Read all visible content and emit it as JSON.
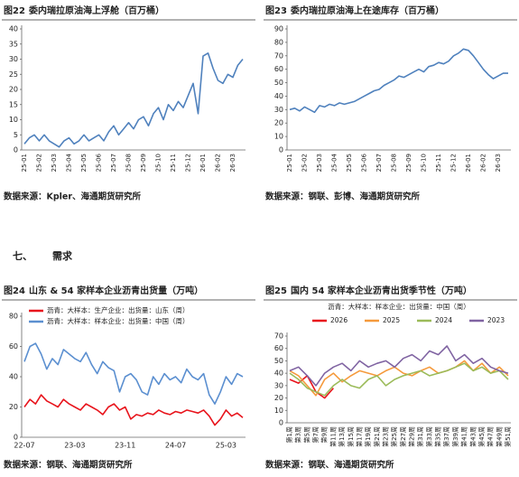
{
  "figures": [
    {
      "label": "图22",
      "title": "委内瑞拉原油海上浮舱（百万桶）",
      "source": "数据来源：Kpler、海通期货研究所",
      "chart_data": {
        "type": "line",
        "categories": [
          "25-01",
          null,
          null,
          "25-02",
          null,
          null,
          "25-03",
          null,
          null,
          "25-04",
          null,
          null,
          "25-05",
          null,
          null,
          "25-06",
          null,
          null,
          "25-07",
          null,
          null,
          "25-08",
          null,
          null,
          "25-09",
          null,
          null,
          "25-10",
          null,
          null,
          "25-11",
          null,
          null,
          "25-12",
          null,
          null,
          "26-01",
          null,
          null,
          "26-02",
          null,
          null,
          "26-03",
          null,
          null
        ],
        "series": [
          {
            "color": "#4f81bd",
            "values": [
              2,
              4,
              5,
              3,
              5,
              3,
              2,
              1,
              3,
              4,
              2,
              3,
              5,
              3,
              4,
              5,
              3,
              6,
              8,
              5,
              7,
              9,
              7,
              10,
              11,
              8,
              12,
              14,
              10,
              15,
              13,
              16,
              14,
              18,
              22,
              12,
              31,
              32,
              27,
              23,
              22,
              25,
              24,
              28,
              30
            ]
          }
        ],
        "ylim": [
          0,
          40
        ],
        "yticks": [
          0,
          5,
          10,
          15,
          20,
          25,
          30,
          35,
          40
        ],
        "grid": false
      }
    },
    {
      "label": "图23",
      "title": "委内瑞拉原油海上在途库存（百万桶）",
      "source": "数据来源：钢联、彭博、海通期货研究所",
      "chart_data": {
        "type": "line",
        "categories": [
          "25-01",
          null,
          null,
          "25-02",
          null,
          null,
          "25-03",
          null,
          null,
          "25-04",
          null,
          null,
          "25-05",
          null,
          null,
          "25-06",
          null,
          null,
          "25-07",
          null,
          null,
          "25-08",
          null,
          null,
          "25-09",
          null,
          null,
          "25-10",
          null,
          null,
          "25-11",
          null,
          null,
          "25-12",
          null,
          null,
          "26-01",
          null,
          null,
          "26-02",
          null,
          null,
          "26-03",
          null,
          null
        ],
        "series": [
          {
            "color": "#4f81bd",
            "values": [
              30,
              31,
              29,
              32,
              30,
              28,
              33,
              32,
              34,
              33,
              35,
              34,
              35,
              36,
              38,
              40,
              42,
              44,
              45,
              48,
              50,
              52,
              55,
              54,
              56,
              58,
              60,
              58,
              62,
              63,
              65,
              64,
              66,
              70,
              72,
              75,
              74,
              70,
              65,
              60,
              56,
              53,
              55,
              57,
              57
            ]
          }
        ],
        "ylim": [
          0,
          90
        ],
        "yticks": [
          0,
          10,
          20,
          30,
          40,
          50,
          60,
          70,
          80,
          90
        ],
        "grid": false
      }
    },
    {
      "label": "图24",
      "title": "山东 & 54 家样本企业沥青出货量（万吨）",
      "source": "数据来源：钢联、海通期货研究所",
      "chart_data": {
        "type": "line",
        "legend": "top-left",
        "categories": [
          "22-07",
          null,
          null,
          null,
          null,
          null,
          null,
          null,
          null,
          "23-03",
          null,
          null,
          null,
          null,
          null,
          null,
          null,
          null,
          "23-11",
          null,
          null,
          null,
          null,
          null,
          null,
          null,
          null,
          "24-07",
          null,
          null,
          null,
          null,
          null,
          null,
          null,
          null,
          "25-03",
          null,
          null,
          null
        ],
        "series": [
          {
            "name": "沥青：大样本：生产企业：出货量：山东（周）",
            "color": "#e8141c",
            "values": [
              20,
              25,
              22,
              28,
              24,
              22,
              20,
              25,
              22,
              20,
              18,
              22,
              20,
              18,
              15,
              20,
              22,
              18,
              20,
              12,
              15,
              14,
              16,
              15,
              18,
              16,
              15,
              17,
              16,
              18,
              17,
              16,
              18,
              14,
              8,
              12,
              18,
              14,
              16,
              13
            ]
          },
          {
            "name": "沥青：大样本：样本企业：出货量：中国（周）",
            "color": "#5b8fd0",
            "values": [
              50,
              60,
              62,
              55,
              45,
              52,
              48,
              58,
              55,
              52,
              50,
              56,
              48,
              42,
              50,
              46,
              44,
              30,
              40,
              42,
              38,
              30,
              28,
              40,
              35,
              42,
              38,
              40,
              36,
              45,
              40,
              38,
              42,
              28,
              22,
              30,
              40,
              35,
              42,
              40
            ]
          }
        ],
        "ylim": [
          0,
          80
        ],
        "yticks": [
          0,
          20,
          40,
          60,
          80
        ],
        "grid": false
      }
    },
    {
      "label": "图25",
      "title": "国内 54 家样本企业沥青出货季节性（万吨）",
      "source": "数据来源：钢联、海通期货研究所",
      "chart_data": {
        "type": "line",
        "subtitle": "沥青：大样本：样本企业：出货量：中国（周）",
        "legend": "top",
        "categories": [
          "第1周",
          "第3周",
          "第5周",
          "第7周",
          "第9周",
          "第11周",
          "第13周",
          "第15周",
          "第17周",
          "第19周",
          "第21周",
          "第23周",
          "第25周",
          "第27周",
          "第29周",
          "第31周",
          "第33周",
          "第35周",
          "第37周",
          "第39周",
          "第41周",
          "第43周",
          "第45周",
          "第47周",
          "第49周",
          "第51周"
        ],
        "series": [
          {
            "name": "2026",
            "color": "#e8141c",
            "values": [
              35,
              32,
              38,
              25,
              20,
              28,
              null,
              null,
              null,
              null,
              null,
              null,
              null,
              null,
              null,
              null,
              null,
              null,
              null,
              null,
              null,
              null,
              null,
              null,
              null,
              null
            ]
          },
          {
            "name": "2025",
            "color": "#f59a3c",
            "values": [
              42,
              38,
              30,
              22,
              35,
              40,
              33,
              38,
              42,
              40,
              38,
              42,
              45,
              40,
              38,
              42,
              45,
              40,
              42,
              45,
              50,
              42,
              48,
              40,
              45,
              38
            ]
          },
          {
            "name": "2024",
            "color": "#9bbb59",
            "values": [
              40,
              35,
              28,
              25,
              22,
              30,
              35,
              30,
              28,
              35,
              38,
              30,
              35,
              38,
              40,
              42,
              38,
              40,
              42,
              45,
              48,
              42,
              45,
              40,
              42,
              35
            ]
          },
          {
            "name": "2023",
            "color": "#8064a2",
            "values": [
              42,
              45,
              38,
              30,
              40,
              45,
              48,
              42,
              50,
              45,
              48,
              50,
              45,
              52,
              55,
              50,
              58,
              55,
              62,
              50,
              55,
              48,
              52,
              45,
              42,
              40
            ]
          }
        ],
        "ylim": [
          0,
          70
        ],
        "yticks": [
          0,
          10,
          20,
          30,
          40,
          50,
          60,
          70
        ],
        "grid": false
      }
    }
  ],
  "section": {
    "number": "七、",
    "title": "需求"
  }
}
